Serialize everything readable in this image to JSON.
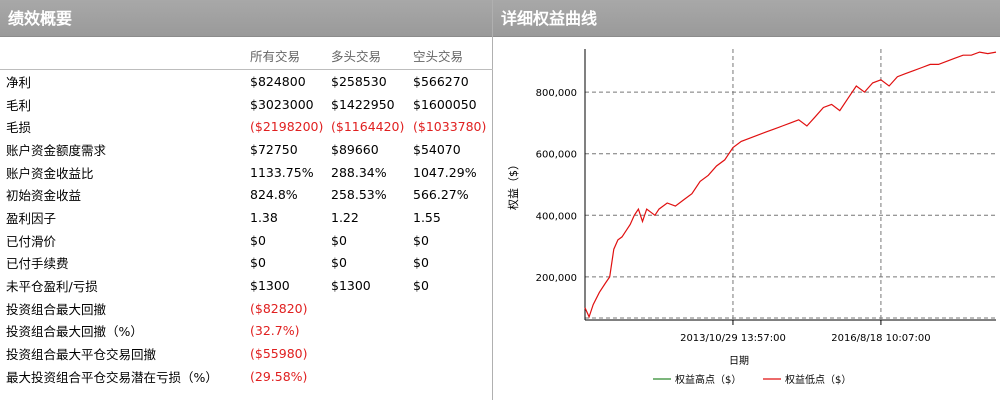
{
  "left_panel": {
    "title": "绩效概要",
    "columns": [
      "所有交易",
      "多头交易",
      "空头交易"
    ],
    "rows": [
      {
        "label": "净利",
        "values": [
          "$824800",
          "$258530",
          "$566270"
        ],
        "negative": false
      },
      {
        "label": "毛利",
        "values": [
          "$3023000",
          "$1422950",
          "$1600050"
        ],
        "negative": false
      },
      {
        "label": "毛损",
        "values": [
          "($2198200)",
          "($1164420)",
          "($1033780)"
        ],
        "negative": true
      },
      {
        "label": "账户资金额度需求",
        "values": [
          "$72750",
          "$89660",
          "$54070"
        ],
        "negative": false
      },
      {
        "label": "账户资金收益比",
        "values": [
          "1133.75%",
          "288.34%",
          "1047.29%"
        ],
        "negative": false
      },
      {
        "label": "初始资金收益",
        "values": [
          "824.8%",
          "258.53%",
          "566.27%"
        ],
        "negative": false
      },
      {
        "label": "盈利因子",
        "values": [
          "1.38",
          "1.22",
          "1.55"
        ],
        "negative": false
      },
      {
        "label": "已付滑价",
        "values": [
          "$0",
          "$0",
          "$0"
        ],
        "negative": false
      },
      {
        "label": "已付手续费",
        "values": [
          "$0",
          "$0",
          "$0"
        ],
        "negative": false
      },
      {
        "label": "未平仓盈利/亏损",
        "values": [
          "$1300",
          "$1300",
          "$0"
        ],
        "negative": false
      },
      {
        "label": "投资组合最大回撤",
        "values": [
          "($82820)",
          "",
          ""
        ],
        "negative": true
      },
      {
        "label": "投资组合最大回撤（%）",
        "values": [
          "(32.7%)",
          "",
          ""
        ],
        "negative": true
      },
      {
        "label": "投资组合最大平仓交易回撤",
        "values": [
          "($55980)",
          "",
          ""
        ],
        "negative": true
      },
      {
        "label": "最大投资组合平仓交易潜在亏损（%）",
        "values": [
          "(29.58%)",
          "",
          ""
        ],
        "negative": true
      }
    ]
  },
  "right_panel": {
    "title": "详细权益曲线"
  },
  "colors": {
    "header_bg": "#a0a0a0",
    "negative": "#e02020",
    "equity_high": "#2e8b2e",
    "equity_low": "#e01010"
  },
  "chart_data": {
    "type": "line",
    "xlabel": "日期",
    "ylabel": "权益（$）",
    "y_ticks": [
      "200,000",
      "400,000",
      "600,000",
      "800,000"
    ],
    "y_tick_values": [
      200000,
      400000,
      600000,
      800000
    ],
    "x_ticks": [
      "2013/10/29 13:57:00",
      "2016/8/18 10:07:00"
    ],
    "ylim": [
      60000,
      940000
    ],
    "legend": [
      {
        "name": "权益高点（$）",
        "color": "#2e8b2e"
      },
      {
        "name": "权益低点（$）",
        "color": "#e01010"
      }
    ],
    "legend_position": "bottom",
    "grid": true,
    "series": [
      {
        "name": "权益低点（$）",
        "x": [
          0,
          0.01,
          0.02,
          0.035,
          0.05,
          0.06,
          0.07,
          0.08,
          0.09,
          0.1,
          0.11,
          0.12,
          0.13,
          0.14,
          0.15,
          0.16,
          0.17,
          0.18,
          0.2,
          0.22,
          0.24,
          0.26,
          0.28,
          0.3,
          0.32,
          0.34,
          0.36,
          0.38,
          0.4,
          0.42,
          0.44,
          0.46,
          0.48,
          0.5,
          0.52,
          0.54,
          0.56,
          0.58,
          0.6,
          0.62,
          0.64,
          0.66,
          0.68,
          0.7,
          0.72,
          0.74,
          0.76,
          0.78,
          0.8,
          0.82,
          0.84,
          0.86,
          0.88,
          0.9,
          0.92,
          0.94,
          0.96,
          0.98,
          1.0
        ],
        "y": [
          100000,
          70000,
          110000,
          150000,
          180000,
          200000,
          290000,
          320000,
          330000,
          350000,
          370000,
          400000,
          420000,
          380000,
          420000,
          410000,
          400000,
          420000,
          440000,
          430000,
          450000,
          470000,
          510000,
          530000,
          560000,
          580000,
          620000,
          640000,
          650000,
          660000,
          670000,
          680000,
          690000,
          700000,
          710000,
          690000,
          720000,
          750000,
          760000,
          740000,
          780000,
          820000,
          800000,
          830000,
          840000,
          820000,
          850000,
          860000,
          870000,
          880000,
          890000,
          890000,
          900000,
          910000,
          920000,
          920000,
          930000,
          925000,
          930000
        ]
      }
    ]
  }
}
